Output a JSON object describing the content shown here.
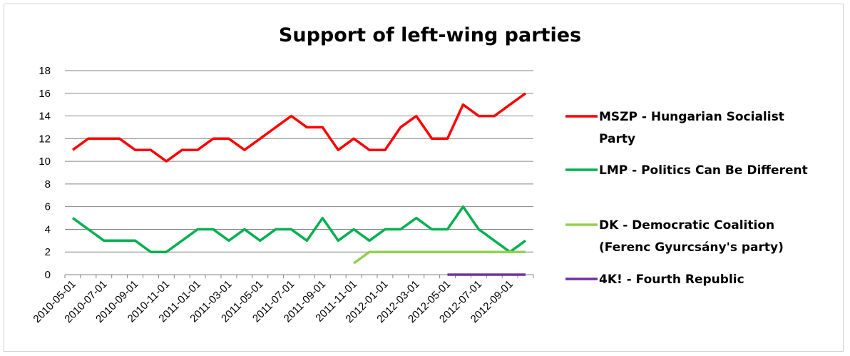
{
  "chart_data": {
    "type": "line",
    "title": "Support of left-wing parties",
    "xlabel": "",
    "ylabel": "",
    "ylim": [
      0,
      18
    ],
    "yticks": [
      "0",
      "2",
      "4",
      "6",
      "8",
      "10",
      "12",
      "14",
      "16",
      "18"
    ],
    "grid": true,
    "legend_position": "right",
    "x": [
      "2010-05-01",
      "2010-06-01",
      "2010-07-01",
      "2010-08-01",
      "2010-09-01",
      "2010-10-01",
      "2010-11-01",
      "2010-12-01",
      "2011-01-01",
      "2011-02-01",
      "2011-03-01",
      "2011-04-01",
      "2011-05-01",
      "2011-06-01",
      "2011-07-01",
      "2011-08-01",
      "2011-09-01",
      "2011-10-01",
      "2011-11-01",
      "2011-12-01",
      "2012-01-01",
      "2012-02-01",
      "2012-03-01",
      "2012-04-01",
      "2012-05-01",
      "2012-06-01",
      "2012-07-01",
      "2012-08-01",
      "2012-09-01",
      "2012-10-01"
    ],
    "xtick_labels": [
      "2010-05-01",
      "2010-07-01",
      "2010-09-01",
      "2010-11-01",
      "2011-01-01",
      "2011-03-01",
      "2011-05-01",
      "2011-07-01",
      "2011-09-01",
      "2011-11-01",
      "2012-01-01",
      "2012-03-01",
      "2012-05-01",
      "2012-07-01",
      "2012-09-01"
    ],
    "series": [
      {
        "name": "MSZP - Hungarian Socialist Party",
        "legend_lines": [
          "MSZP - Hungarian Socialist",
          "Party"
        ],
        "color": "#ff0000",
        "values": [
          11,
          12,
          12,
          12,
          11,
          11,
          10,
          11,
          11,
          12,
          12,
          11,
          12,
          13,
          14,
          13,
          13,
          11,
          12,
          11,
          11,
          13,
          14,
          12,
          12,
          15,
          14,
          14,
          15,
          16
        ]
      },
      {
        "name": "LMP - Politics Can Be Different",
        "legend_lines": [
          "LMP - Politics Can Be Different"
        ],
        "color": "#00b050",
        "values": [
          5,
          4,
          3,
          3,
          3,
          2,
          2,
          3,
          4,
          4,
          3,
          4,
          3,
          4,
          4,
          3,
          5,
          3,
          4,
          3,
          4,
          4,
          5,
          4,
          4,
          6,
          4,
          3,
          2,
          3
        ]
      },
      {
        "name": "DK - Democratic Coalition (Ferenc Gyurcsány's party)",
        "legend_lines": [
          "DK - Democratic Coalition",
          "(Ferenc Gyurcsány's party)"
        ],
        "color": "#92d050",
        "values": [
          null,
          null,
          null,
          null,
          null,
          null,
          null,
          null,
          null,
          null,
          null,
          null,
          null,
          null,
          null,
          null,
          null,
          null,
          1,
          2,
          2,
          2,
          2,
          2,
          2,
          2,
          2,
          2,
          2,
          2
        ]
      },
      {
        "name": "4K! - Fourth Republic",
        "legend_lines": [
          "4K! - Fourth Republic"
        ],
        "color": "#7030a0",
        "values": [
          null,
          null,
          null,
          null,
          null,
          null,
          null,
          null,
          null,
          null,
          null,
          null,
          null,
          null,
          null,
          null,
          null,
          null,
          null,
          null,
          null,
          null,
          null,
          null,
          0,
          0,
          0,
          0,
          0,
          0
        ]
      }
    ]
  }
}
